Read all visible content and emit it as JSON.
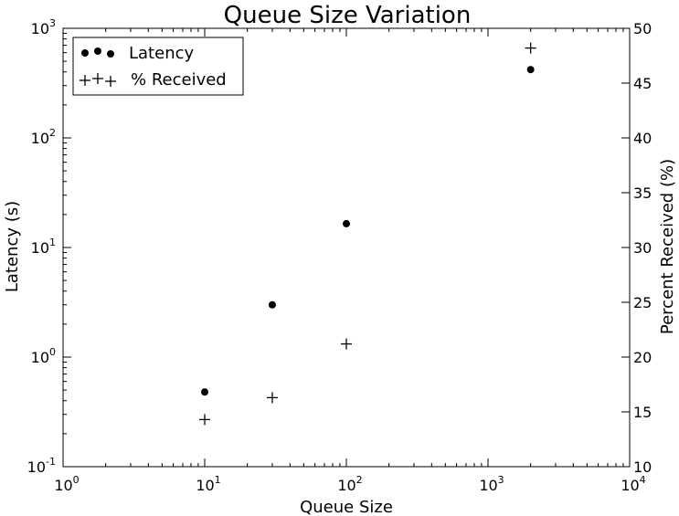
{
  "chart_data": {
    "type": "scatter",
    "title": "Queue Size Variation",
    "xlabel": "Queue Size",
    "ylabel_left": "Latency (s)",
    "ylabel_right": "Percent Received (%)",
    "x_scale": "log",
    "xlim": [
      1,
      10000
    ],
    "y_left_scale": "log",
    "y_left_lim": [
      0.1,
      1000
    ],
    "y_right_scale": "linear",
    "y_right_lim": [
      10,
      50
    ],
    "x_ticks": [
      {
        "value": 1,
        "base": "10",
        "exp": "0"
      },
      {
        "value": 10,
        "base": "10",
        "exp": "1"
      },
      {
        "value": 100,
        "base": "10",
        "exp": "2"
      },
      {
        "value": 1000,
        "base": "10",
        "exp": "3"
      },
      {
        "value": 10000,
        "base": "10",
        "exp": "4"
      }
    ],
    "y_left_ticks": [
      {
        "value": 0.1,
        "base": "10",
        "exp": "-1"
      },
      {
        "value": 1,
        "base": "10",
        "exp": "0"
      },
      {
        "value": 10,
        "base": "10",
        "exp": "1"
      },
      {
        "value": 100,
        "base": "10",
        "exp": "2"
      },
      {
        "value": 1000,
        "base": "10",
        "exp": "3"
      }
    ],
    "y_right_ticks": [
      "10",
      "15",
      "20",
      "25",
      "30",
      "35",
      "40",
      "45",
      "50"
    ],
    "grid": false,
    "legend_position": "top-left",
    "series": [
      {
        "name": "Latency",
        "marker": "dot",
        "axis": "left",
        "color": "#000000",
        "x": [
          10,
          30,
          100,
          2000
        ],
        "y": [
          0.48,
          3.0,
          16.5,
          420
        ]
      },
      {
        "name": "% Received",
        "marker": "plus",
        "axis": "right",
        "color": "#000000",
        "x": [
          10,
          30,
          100,
          2000
        ],
        "y": [
          14.3,
          16.3,
          21.2,
          48.2
        ]
      }
    ]
  }
}
